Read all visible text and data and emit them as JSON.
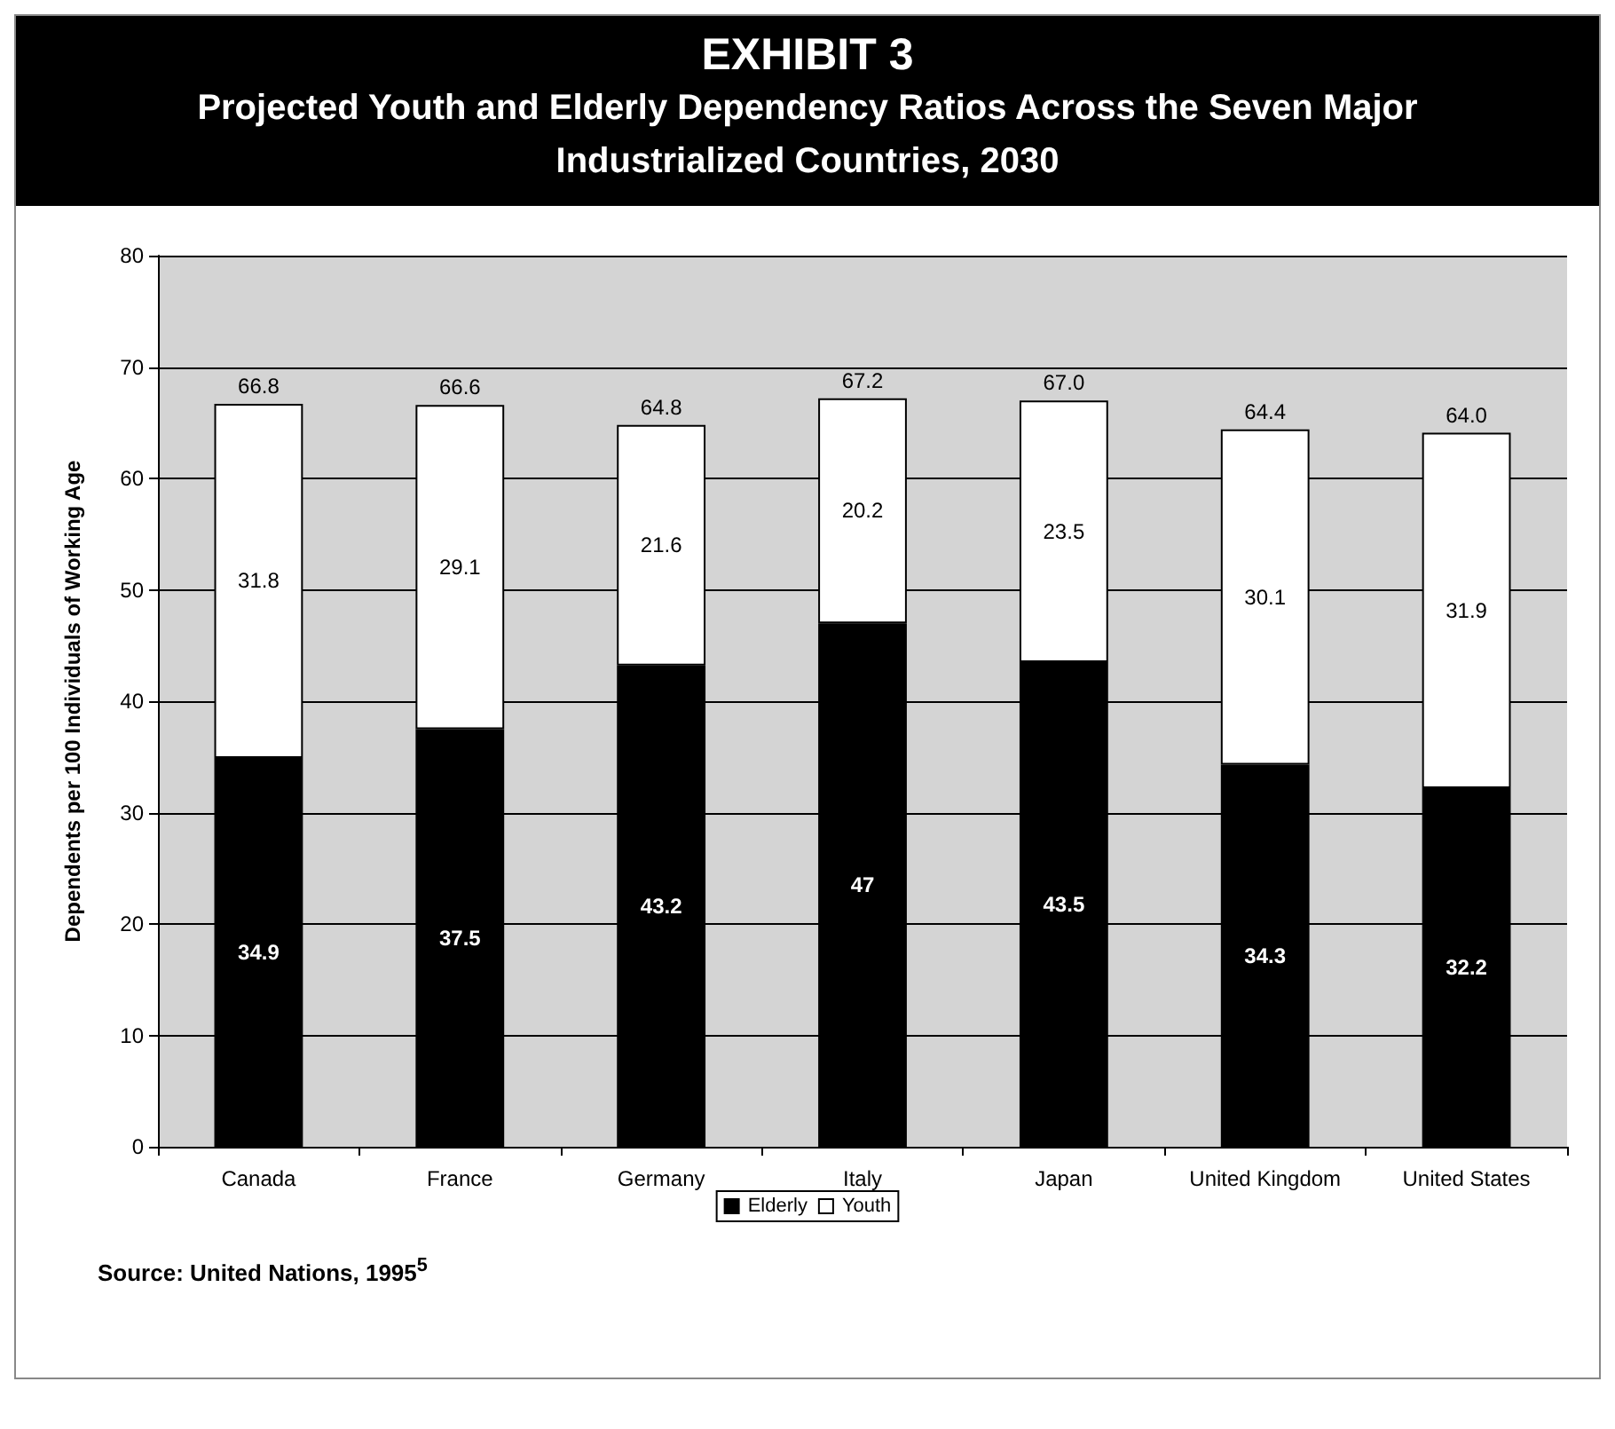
{
  "chart_data": {
    "type": "bar",
    "title": "EXHIBIT 3",
    "subtitle": "Projected Youth and Elderly Dependency Ratios Across the Seven Major Industrialized Countries, 2030",
    "ylabel": "Dependents per 100 Individuals of Working Age",
    "categories": [
      "Canada",
      "France",
      "Germany",
      "Italy",
      "Japan",
      "United Kingdom",
      "United States"
    ],
    "series": [
      {
        "name": "Elderly",
        "color": "#000000",
        "values": [
          34.9,
          37.5,
          43.2,
          47,
          43.5,
          34.3,
          32.2
        ]
      },
      {
        "name": "Youth",
        "color": "#ffffff",
        "values": [
          31.8,
          29.1,
          21.6,
          20.2,
          23.5,
          30.1,
          31.9
        ]
      }
    ],
    "stacked": true,
    "data_labels": true,
    "totals": [
      "66.8",
      "66.6",
      "64.8",
      "67.2",
      "67.0",
      "64.4",
      "64.0"
    ],
    "ylim": [
      0,
      80
    ],
    "yticks": [
      0,
      10,
      20,
      30,
      40,
      50,
      60,
      70,
      80
    ],
    "grid": "y",
    "legend": "bottom",
    "annotations": [
      "Source: United Nations, 1995$^{5}$"
    ]
  }
}
